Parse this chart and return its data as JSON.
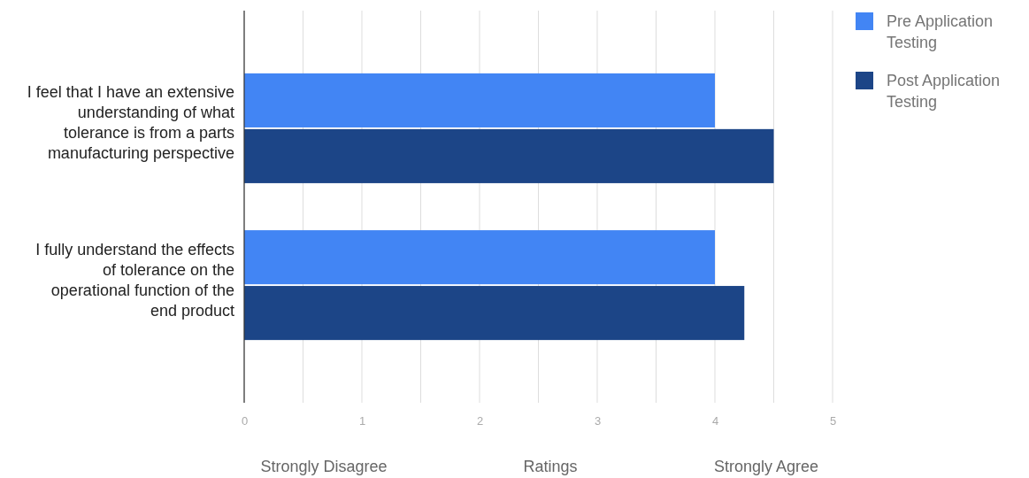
{
  "chart_data": {
    "type": "bar",
    "orientation": "horizontal",
    "categories": [
      "I feel that I have an extensive understanding of what tolerance is from a parts manufacturing perspective",
      "I fully understand the effects of tolerance on the operational function of the end product"
    ],
    "series": [
      {
        "name": "Pre Application Testing",
        "color": "#4285f4",
        "values": [
          4,
          4
        ]
      },
      {
        "name": "Post Application Testing",
        "color": "#1c4587",
        "values": [
          4.5,
          4.25
        ]
      }
    ],
    "xlim": [
      0,
      5
    ],
    "xticks": [
      0,
      {
        "value": 0.5,
        "label": null
      },
      1,
      {
        "value": 1.5,
        "label": null
      },
      2,
      {
        "value": 2.5,
        "label": null
      },
      3,
      {
        "value": 3.5,
        "label": null
      },
      4,
      {
        "value": 4.5,
        "label": null
      },
      5
    ],
    "xlabel": "Ratings",
    "annotations": [
      "Strongly Disagree",
      "Strongly Agree"
    ],
    "grid": true,
    "legend": "top right"
  }
}
